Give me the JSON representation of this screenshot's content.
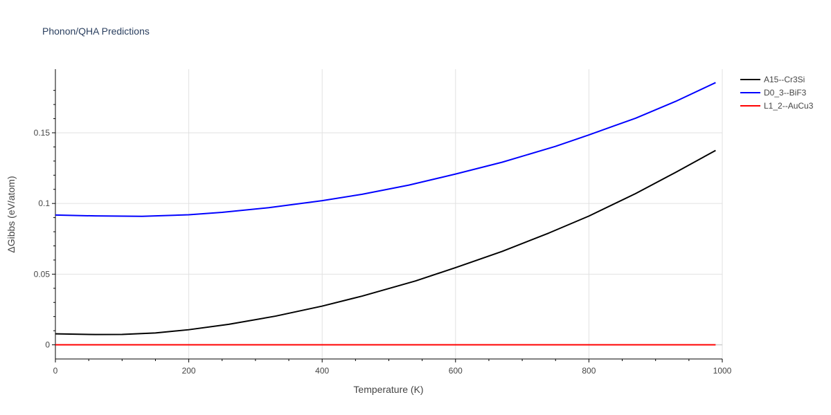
{
  "chart_data": {
    "type": "line",
    "title": "Phonon/QHA Predictions",
    "xlabel": "Temperature (K)",
    "ylabel": "ΔGibbs (eV/atom)",
    "xlim": [
      0,
      1000
    ],
    "ylim": [
      -0.01,
      0.195
    ],
    "xticks": [
      0,
      200,
      400,
      600,
      800,
      1000
    ],
    "xtick_labels": [
      "0",
      "200",
      "400",
      "600",
      "800",
      "1000"
    ],
    "yticks": [
      0,
      0.05,
      0.1,
      0.15
    ],
    "ytick_labels": [
      "0",
      "0.05",
      "0.1",
      "0.15"
    ],
    "grid": true,
    "legend_position": "top-right, outside plot",
    "series": [
      {
        "name": "A15--Cr3Si",
        "color": "#000000",
        "x": [
          0,
          60,
          100,
          150,
          200,
          260,
          330,
          400,
          460,
          540,
          600,
          670,
          740,
          800,
          870,
          930,
          990
        ],
        "y": [
          0.0078,
          0.0073,
          0.0074,
          0.0084,
          0.0107,
          0.0145,
          0.0203,
          0.0274,
          0.0345,
          0.0452,
          0.0546,
          0.0661,
          0.0791,
          0.0911,
          0.107,
          0.122,
          0.1375
        ]
      },
      {
        "name": "D0_3--BiF3",
        "color": "#0000ff",
        "x": [
          0,
          60,
          130,
          200,
          250,
          320,
          400,
          460,
          530,
          600,
          670,
          750,
          800,
          870,
          930,
          990
        ],
        "y": [
          0.0918,
          0.0912,
          0.0909,
          0.092,
          0.0937,
          0.097,
          0.102,
          0.1065,
          0.113,
          0.1208,
          0.1292,
          0.1404,
          0.1485,
          0.1603,
          0.1722,
          0.1855
        ]
      },
      {
        "name": "L1_2--AuCu3",
        "color": "#ff0000",
        "x": [
          0,
          990
        ],
        "y": [
          0,
          0
        ]
      }
    ]
  }
}
